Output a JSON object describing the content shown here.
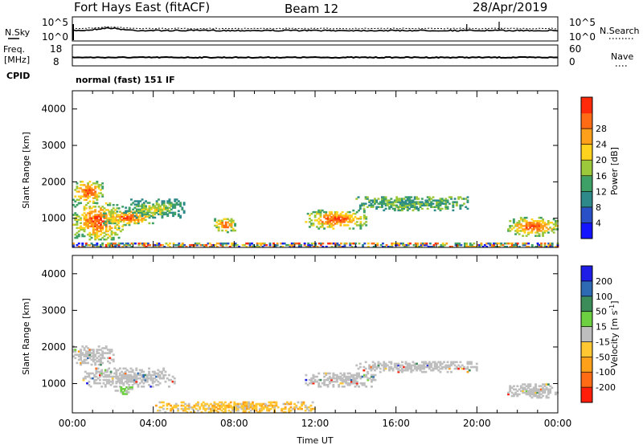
{
  "header": {
    "station": "Fort Hays East (fitACF)",
    "beam": "Beam 12",
    "date": "28/Apr/2019"
  },
  "noise_panel": {
    "left_label": "N.Sky",
    "right_label": "N.Search",
    "tick_top": "10^5",
    "tick_bottom": "10^0"
  },
  "freq_panel": {
    "left_label_1": "Freq.",
    "left_label_2": "[MHz]",
    "left_tick_top": "18",
    "left_tick_bottom": "8",
    "right_tick_top": "60",
    "right_tick_bottom": "0",
    "right_label": "Nave"
  },
  "cpid": {
    "label": "CPID",
    "text": "normal (fast) 151 IF"
  },
  "chart_data": [
    {
      "type": "heatmap",
      "title": "",
      "xlabel": "",
      "ylabel": "Slant Range [km]",
      "x_ticks": [
        "00:00",
        "04:00",
        "08:00",
        "12:00",
        "16:00",
        "20:00",
        "00:00"
      ],
      "y_ticks": [
        "1000",
        "2000",
        "3000",
        "4000"
      ],
      "ylim": [
        200,
        4500
      ],
      "colorbar": {
        "label": "Power [dB]",
        "ticks": [
          "4",
          "8",
          "12",
          "16",
          "20",
          "24",
          "28"
        ],
        "range": [
          0,
          32
        ],
        "colors": [
          "#1414ff",
          "#2a50c8",
          "#2e8a8a",
          "#3ea066",
          "#9cc83c",
          "#ffd21e",
          "#ffa01a",
          "#ff6a14",
          "#ff2a0a"
        ]
      },
      "echo_regions_hours_km": [
        {
          "t": [
            0.0,
            2.5
          ],
          "r": [
            400,
            1400
          ],
          "level": "high"
        },
        {
          "t": [
            0.0,
            1.5
          ],
          "r": [
            1400,
            2000
          ],
          "level": "high"
        },
        {
          "t": [
            1.5,
            4.0
          ],
          "r": [
            800,
            1200
          ],
          "level": "high"
        },
        {
          "t": [
            2.5,
            5.5
          ],
          "r": [
            1000,
            1500
          ],
          "level": "mid"
        },
        {
          "t": [
            7.0,
            8.0
          ],
          "r": [
            600,
            1000
          ],
          "level": "high"
        },
        {
          "t": [
            11.5,
            14.5
          ],
          "r": [
            700,
            1200
          ],
          "level": "high"
        },
        {
          "t": [
            14.0,
            19.5
          ],
          "r": [
            1200,
            1600
          ],
          "level": "low"
        },
        {
          "t": [
            21.5,
            24.0
          ],
          "r": [
            500,
            1000
          ],
          "level": "high"
        },
        {
          "t": [
            0.0,
            24.0
          ],
          "r": [
            200,
            300
          ],
          "level": "mixed"
        }
      ]
    },
    {
      "type": "heatmap",
      "title": "",
      "xlabel": "Time UT",
      "ylabel": "Slant Range [km]",
      "x_ticks": [
        "00:00",
        "04:00",
        "08:00",
        "12:00",
        "16:00",
        "20:00",
        "00:00"
      ],
      "y_ticks": [
        "1000",
        "2000",
        "3000",
        "4000"
      ],
      "ylim": [
        200,
        4500
      ],
      "colorbar": {
        "label": "Velocity [m s",
        "label_sup": "-1",
        "label_end": "]",
        "ticks": [
          "200",
          "100",
          "50",
          "15",
          "-15",
          "-50",
          "-100",
          "-200"
        ],
        "colors": [
          "#1e1ee6",
          "#2e6ab4",
          "#3c8c5a",
          "#6cd040",
          "#bebebe",
          "#ffc832",
          "#ffa01a",
          "#ff6a14",
          "#ff1e0a"
        ]
      },
      "echo_regions_hours_km": [
        {
          "t": [
            0.0,
            2.0
          ],
          "r": [
            1500,
            2000
          ],
          "level": "ground"
        },
        {
          "t": [
            0.5,
            5.0
          ],
          "r": [
            900,
            1400
          ],
          "level": "ground"
        },
        {
          "t": [
            2.0,
            3.0
          ],
          "r": [
            700,
            900
          ],
          "level": "positive"
        },
        {
          "t": [
            4.0,
            12.0
          ],
          "r": [
            200,
            500
          ],
          "level": "negative"
        },
        {
          "t": [
            11.5,
            15.0
          ],
          "r": [
            900,
            1300
          ],
          "level": "ground"
        },
        {
          "t": [
            14.0,
            20.0
          ],
          "r": [
            1300,
            1600
          ],
          "level": "ground"
        },
        {
          "t": [
            21.5,
            24.0
          ],
          "r": [
            600,
            1000
          ],
          "level": "ground"
        }
      ]
    }
  ]
}
